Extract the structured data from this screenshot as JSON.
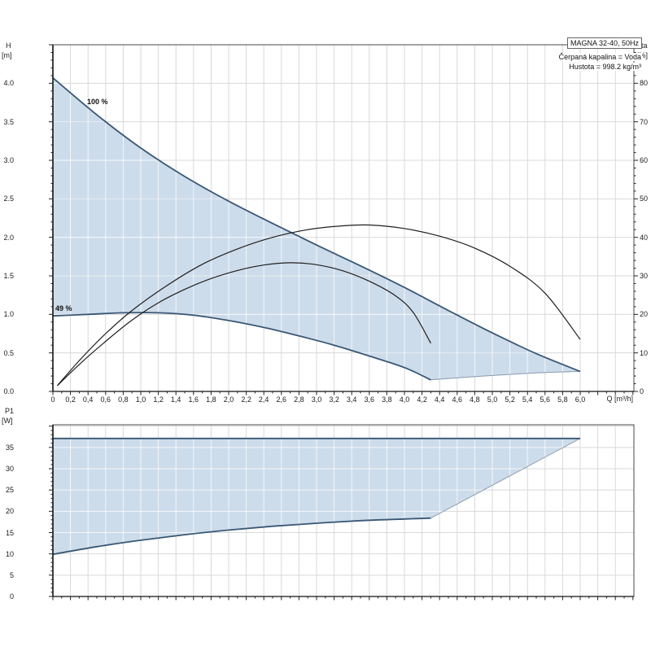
{
  "header": {
    "model": "MAGNA 32-40, 50Hz",
    "medium": "Čerpaná kapalina = Voda",
    "density": "Hustota = 998.2 kg/m³"
  },
  "top_chart": {
    "y_left": {
      "name": "H",
      "unit": "[m]",
      "tick_labels": [
        "0.0",
        "0.5",
        "1.0",
        "1.5",
        "2.0",
        "2.5",
        "3.0",
        "3.5",
        "4.0"
      ]
    },
    "y_right": {
      "name": "eta",
      "unit": "[%]",
      "tick_labels": [
        "0",
        "10",
        "20",
        "30",
        "40",
        "50",
        "60",
        "70",
        "80"
      ]
    },
    "x": {
      "name": "Q [m³/h]",
      "tick_labels": [
        "0",
        "0,2",
        "0,4",
        "0,6",
        "0,8",
        "1,0",
        "1,2",
        "1,4",
        "1,6",
        "1,8",
        "2,0",
        "2,2",
        "2,4",
        "2,6",
        "2,8",
        "3,0",
        "3,2",
        "3,4",
        "3,6",
        "3,8",
        "4,0",
        "4,2",
        "4,4",
        "4,6",
        "4,8",
        "5,0",
        "5,2",
        "5,4",
        "5,6",
        "5,8",
        "6,0"
      ]
    },
    "curve_labels": {
      "max": "100 %",
      "min": "49 %"
    }
  },
  "bottom_chart": {
    "y_left": {
      "name": "P1",
      "unit": "[W]",
      "tick_labels": [
        "0",
        "5",
        "10",
        "15",
        "20",
        "25",
        "30",
        "35"
      ]
    }
  },
  "colors": {
    "fill": "#cddcea",
    "curve": "#3a5775",
    "eta_curve": "#1f1f1f",
    "grid": "#d9d9d9",
    "frame": "#4a4a4a",
    "axis": "#111111"
  },
  "chart_data": [
    {
      "type": "line",
      "title": "MAGNA 32-40, 50Hz",
      "xlabel": "Q [m³/h]",
      "ylabel_left": "H [m]",
      "ylabel_right": "eta [%]",
      "x_range": [
        0,
        6.6
      ],
      "y_left_range": [
        0,
        4.5
      ],
      "y_right_range": [
        0,
        90
      ],
      "grid": true,
      "series": [
        {
          "name": "head_100pct",
          "axis": "left",
          "label": "100 %",
          "points": [
            [
              0,
              4.07
            ],
            [
              0.5,
              3.59
            ],
            [
              1.0,
              3.16
            ],
            [
              1.5,
              2.79
            ],
            [
              2.0,
              2.47
            ],
            [
              2.5,
              2.18
            ],
            [
              3.0,
              1.9
            ],
            [
              3.5,
              1.63
            ],
            [
              4.0,
              1.35
            ],
            [
              4.5,
              1.05
            ],
            [
              5.0,
              0.76
            ],
            [
              5.5,
              0.49
            ],
            [
              6.0,
              0.26
            ]
          ]
        },
        {
          "name": "head_49pct",
          "axis": "left",
          "label": "49 %",
          "points": [
            [
              0,
              0.98
            ],
            [
              0.4,
              1.0
            ],
            [
              0.8,
              1.02
            ],
            [
              1.2,
              1.02
            ],
            [
              1.6,
              0.99
            ],
            [
              2.0,
              0.92
            ],
            [
              2.4,
              0.83
            ],
            [
              2.8,
              0.72
            ],
            [
              3.2,
              0.6
            ],
            [
              3.6,
              0.46
            ],
            [
              4.0,
              0.31
            ],
            [
              4.3,
              0.15
            ]
          ]
        },
        {
          "name": "envelope_lower_edge",
          "axis": "left",
          "points": [
            [
              4.3,
              0.15
            ],
            [
              4.9,
              0.2
            ],
            [
              5.5,
              0.24
            ],
            [
              6.0,
              0.26
            ]
          ]
        },
        {
          "name": "eta_100pct",
          "axis": "right",
          "points": [
            [
              0.05,
              1.5
            ],
            [
              0.3,
              8
            ],
            [
              0.6,
              15
            ],
            [
              0.9,
              21
            ],
            [
              1.3,
              27.5
            ],
            [
              1.7,
              33
            ],
            [
              2.1,
              37
            ],
            [
              2.5,
              40
            ],
            [
              2.9,
              42
            ],
            [
              3.3,
              43
            ],
            [
              3.6,
              43.2
            ],
            [
              4.0,
              42.3
            ],
            [
              4.4,
              40.3
            ],
            [
              4.8,
              37.2
            ],
            [
              5.2,
              32.5
            ],
            [
              5.6,
              25.5
            ],
            [
              6.0,
              13.5
            ]
          ]
        },
        {
          "name": "eta_49pct",
          "axis": "right",
          "points": [
            [
              0.05,
              1.5
            ],
            [
              0.3,
              7
            ],
            [
              0.6,
              13
            ],
            [
              0.9,
              18.5
            ],
            [
              1.2,
              23
            ],
            [
              1.5,
              26.5
            ],
            [
              1.8,
              29.3
            ],
            [
              2.1,
              31.4
            ],
            [
              2.4,
              32.8
            ],
            [
              2.7,
              33.4
            ],
            [
              3.0,
              32.9
            ],
            [
              3.3,
              31.3
            ],
            [
              3.6,
              28.6
            ],
            [
              3.9,
              24.8
            ],
            [
              4.1,
              20.5
            ],
            [
              4.3,
              12.5
            ]
          ]
        }
      ]
    },
    {
      "type": "line",
      "xlabel": "Q [m³/h]",
      "ylabel": "P1 [W]",
      "x_range": [
        0,
        6.6
      ],
      "ylim": [
        0,
        40.3
      ],
      "grid": true,
      "series": [
        {
          "name": "p1_max",
          "points": [
            [
              0,
              37.1
            ],
            [
              6.0,
              37.1
            ]
          ]
        },
        {
          "name": "p1_min",
          "points": [
            [
              0,
              9.9
            ],
            [
              0.5,
              11.7
            ],
            [
              1.0,
              13.2
            ],
            [
              1.5,
              14.5
            ],
            [
              2.0,
              15.6
            ],
            [
              2.5,
              16.5
            ],
            [
              3.0,
              17.2
            ],
            [
              3.5,
              17.8
            ],
            [
              4.0,
              18.2
            ],
            [
              4.3,
              18.4
            ]
          ]
        },
        {
          "name": "envelope_right_edge",
          "points": [
            [
              4.3,
              18.4
            ],
            [
              6.0,
              37.1
            ]
          ]
        }
      ]
    }
  ]
}
